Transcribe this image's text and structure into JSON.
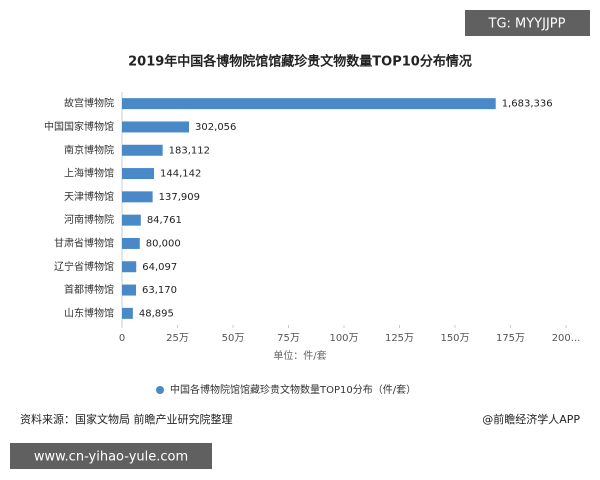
{
  "chart_data": {
    "type": "bar",
    "orientation": "horizontal",
    "title": "2019年中国各博物院馆馆藏珍贵文物数量TOP10分布情况",
    "categories": [
      "故宫博物院",
      "中国国家博物馆",
      "南京博物院",
      "上海博物馆",
      "天津博物馆",
      "河南博物院",
      "甘肃省博物馆",
      "辽宁省博物馆",
      "首都博物馆",
      "山东博物馆"
    ],
    "series": [
      {
        "name": "中国各博物院馆馆藏珍贵文物数量TOP10分布（件/套）",
        "color": "#4a89c8",
        "values": [
          1683336,
          302056,
          183112,
          144142,
          137909,
          84761,
          80000,
          64097,
          63170,
          48895
        ],
        "value_labels": [
          "1,683,336",
          "302,056",
          "183,112",
          "144,142",
          "137,909",
          "84,761",
          "80,000",
          "64,097",
          "63,170",
          "48,895"
        ]
      }
    ],
    "xlim": [
      0,
      2000000
    ],
    "xticks": [
      0,
      {
        "value": 250000,
        "label": "25万"
      },
      {
        "value": 500000,
        "label": "50万"
      },
      {
        "value": 750000,
        "label": "75万"
      },
      {
        "value": 1000000,
        "label": "100万"
      },
      {
        "value": 1250000,
        "label": "125万"
      },
      {
        "value": 1500000,
        "label": "150万"
      },
      {
        "value": 1750000,
        "label": "175万"
      },
      {
        "value": 2000000,
        "label": "200..."
      }
    ],
    "x_label": "单位：件/套",
    "legend": "bottom"
  },
  "source": "资料来源：国家文物局 前瞻产业研究院整理",
  "credit": "@前瞻经济学人APP",
  "overlays": [
    "TG: MYYJJPP",
    "www.cn-yihao-yule.com"
  ]
}
